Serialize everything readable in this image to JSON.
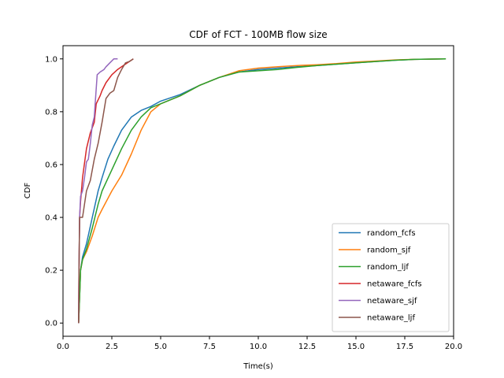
{
  "chart_data": {
    "type": "line",
    "title": "CDF of FCT - 100MB flow size",
    "xlabel": "Time(s)",
    "ylabel": "CDF",
    "xlim": [
      0,
      20
    ],
    "ylim": [
      -0.05,
      1.05
    ],
    "xticks": [
      0.0,
      2.5,
      5.0,
      7.5,
      10.0,
      12.5,
      15.0,
      17.5,
      20.0
    ],
    "xtick_labels": [
      "0.0",
      "2.5",
      "5.0",
      "7.5",
      "10.0",
      "12.5",
      "15.0",
      "17.5",
      "20.0"
    ],
    "yticks": [
      0.0,
      0.2,
      0.4,
      0.6,
      0.8,
      1.0
    ],
    "ytick_labels": [
      "0.0",
      "0.2",
      "0.4",
      "0.6",
      "0.8",
      "1.0"
    ],
    "grid": false,
    "legend_position": "lower-right",
    "series": [
      {
        "name": "random_fcfs",
        "color": "#1f77b4",
        "points": [
          [
            0.8,
            0.0
          ],
          [
            0.85,
            0.1
          ],
          [
            0.9,
            0.2
          ],
          [
            1.0,
            0.25
          ],
          [
            1.2,
            0.3
          ],
          [
            1.5,
            0.4
          ],
          [
            1.8,
            0.5
          ],
          [
            2.0,
            0.55
          ],
          [
            2.3,
            0.62
          ],
          [
            2.6,
            0.67
          ],
          [
            3.0,
            0.73
          ],
          [
            3.5,
            0.78
          ],
          [
            4.0,
            0.805
          ],
          [
            4.5,
            0.82
          ],
          [
            5.0,
            0.84
          ],
          [
            6.0,
            0.865
          ],
          [
            7.0,
            0.9
          ],
          [
            8.0,
            0.93
          ],
          [
            9.0,
            0.95
          ],
          [
            10.0,
            0.96
          ],
          [
            11.0,
            0.965
          ],
          [
            12.0,
            0.97
          ],
          [
            13.0,
            0.975
          ],
          [
            14.0,
            0.98
          ],
          [
            15.0,
            0.985
          ],
          [
            16.0,
            0.99
          ],
          [
            17.0,
            0.995
          ],
          [
            18.0,
            0.998
          ],
          [
            19.6,
            1.0
          ]
        ]
      },
      {
        "name": "random_sjf",
        "color": "#ff7f0e",
        "points": [
          [
            0.8,
            0.0
          ],
          [
            0.85,
            0.1
          ],
          [
            0.9,
            0.2
          ],
          [
            1.0,
            0.24
          ],
          [
            1.2,
            0.27
          ],
          [
            1.5,
            0.33
          ],
          [
            1.8,
            0.4
          ],
          [
            2.0,
            0.43
          ],
          [
            2.5,
            0.5
          ],
          [
            3.0,
            0.56
          ],
          [
            3.5,
            0.64
          ],
          [
            4.0,
            0.73
          ],
          [
            4.5,
            0.8
          ],
          [
            5.0,
            0.83
          ],
          [
            6.0,
            0.86
          ],
          [
            7.0,
            0.9
          ],
          [
            8.0,
            0.93
          ],
          [
            9.0,
            0.955
          ],
          [
            10.0,
            0.965
          ],
          [
            11.0,
            0.97
          ],
          [
            12.0,
            0.975
          ],
          [
            13.0,
            0.978
          ],
          [
            14.0,
            0.982
          ],
          [
            15.0,
            0.988
          ],
          [
            16.0,
            0.992
          ],
          [
            17.0,
            0.996
          ],
          [
            18.0,
            0.998
          ],
          [
            19.6,
            1.0
          ]
        ]
      },
      {
        "name": "random_ljf",
        "color": "#2ca02c",
        "points": [
          [
            0.8,
            0.0
          ],
          [
            0.85,
            0.1
          ],
          [
            0.9,
            0.2
          ],
          [
            1.0,
            0.24
          ],
          [
            1.2,
            0.28
          ],
          [
            1.5,
            0.36
          ],
          [
            1.8,
            0.45
          ],
          [
            2.0,
            0.5
          ],
          [
            2.5,
            0.58
          ],
          [
            3.0,
            0.66
          ],
          [
            3.5,
            0.73
          ],
          [
            4.0,
            0.78
          ],
          [
            4.5,
            0.815
          ],
          [
            5.0,
            0.83
          ],
          [
            6.0,
            0.86
          ],
          [
            7.0,
            0.9
          ],
          [
            8.0,
            0.93
          ],
          [
            9.0,
            0.95
          ],
          [
            10.0,
            0.955
          ],
          [
            11.0,
            0.96
          ],
          [
            12.0,
            0.968
          ],
          [
            13.0,
            0.975
          ],
          [
            14.0,
            0.98
          ],
          [
            15.0,
            0.985
          ],
          [
            16.0,
            0.99
          ],
          [
            17.0,
            0.995
          ],
          [
            18.0,
            0.998
          ],
          [
            19.6,
            1.0
          ]
        ]
      },
      {
        "name": "netaware_fcfs",
        "color": "#d62728",
        "points": [
          [
            0.8,
            0.0
          ],
          [
            0.82,
            0.2
          ],
          [
            0.85,
            0.4
          ],
          [
            0.9,
            0.46
          ],
          [
            1.0,
            0.55
          ],
          [
            1.2,
            0.66
          ],
          [
            1.4,
            0.72
          ],
          [
            1.6,
            0.76
          ],
          [
            1.7,
            0.83
          ],
          [
            1.9,
            0.86
          ],
          [
            2.0,
            0.88
          ],
          [
            2.2,
            0.91
          ],
          [
            2.5,
            0.94
          ],
          [
            2.8,
            0.96
          ],
          [
            3.0,
            0.97
          ],
          [
            3.3,
            0.985
          ],
          [
            3.6,
            1.0
          ]
        ]
      },
      {
        "name": "netaware_sjf",
        "color": "#9467bd",
        "points": [
          [
            0.8,
            0.0
          ],
          [
            0.82,
            0.2
          ],
          [
            0.85,
            0.4
          ],
          [
            0.9,
            0.48
          ],
          [
            1.0,
            0.5
          ],
          [
            1.1,
            0.55
          ],
          [
            1.2,
            0.61
          ],
          [
            1.3,
            0.62
          ],
          [
            1.4,
            0.68
          ],
          [
            1.5,
            0.75
          ],
          [
            1.6,
            0.78
          ],
          [
            1.75,
            0.94
          ],
          [
            1.9,
            0.95
          ],
          [
            2.0,
            0.955
          ],
          [
            2.1,
            0.96
          ],
          [
            2.2,
            0.97
          ],
          [
            2.4,
            0.985
          ],
          [
            2.6,
            1.0
          ],
          [
            2.8,
            1.0
          ]
        ]
      },
      {
        "name": "netaware_ljf",
        "color": "#8c564b",
        "points": [
          [
            0.8,
            0.0
          ],
          [
            0.82,
            0.2
          ],
          [
            0.85,
            0.4
          ],
          [
            0.9,
            0.4
          ],
          [
            1.0,
            0.4
          ],
          [
            1.1,
            0.45
          ],
          [
            1.2,
            0.5
          ],
          [
            1.4,
            0.54
          ],
          [
            1.6,
            0.62
          ],
          [
            1.8,
            0.68
          ],
          [
            2.0,
            0.76
          ],
          [
            2.2,
            0.85
          ],
          [
            2.4,
            0.87
          ],
          [
            2.6,
            0.88
          ],
          [
            2.8,
            0.93
          ],
          [
            3.0,
            0.96
          ],
          [
            3.2,
            0.985
          ],
          [
            3.4,
            0.99
          ],
          [
            3.6,
            1.0
          ]
        ]
      }
    ]
  }
}
